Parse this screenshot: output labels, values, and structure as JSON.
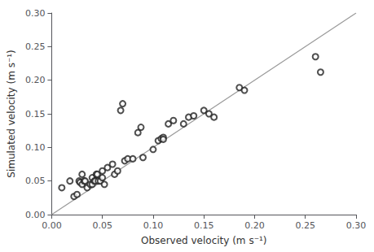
{
  "chart_data": {
    "type": "scatter",
    "xlabel": "Observed velocity (m s⁻¹)",
    "ylabel": "Simulated velocity (m s⁻¹)",
    "series": [
      {
        "type": "scatter",
        "color": "#222222",
        "x": [
          0.01,
          0.018,
          0.022,
          0.025,
          0.027,
          0.028,
          0.03,
          0.03,
          0.032,
          0.033,
          0.035,
          0.038,
          0.04,
          0.04,
          0.042,
          0.043,
          0.044,
          0.045,
          0.046,
          0.048,
          0.05,
          0.05,
          0.052,
          0.055,
          0.06,
          0.062,
          0.065,
          0.068,
          0.07,
          0.072,
          0.075,
          0.08,
          0.085,
          0.088,
          0.09,
          0.1,
          0.105,
          0.108,
          0.11,
          0.11,
          0.115,
          0.12,
          0.13,
          0.135,
          0.14,
          0.15,
          0.155,
          0.16,
          0.185,
          0.19,
          0.26,
          0.265
        ],
        "values": [
          0.04,
          0.05,
          0.027,
          0.03,
          0.05,
          0.048,
          0.045,
          0.06,
          0.05,
          0.05,
          0.04,
          0.045,
          0.055,
          0.045,
          0.05,
          0.05,
          0.06,
          0.06,
          0.05,
          0.05,
          0.055,
          0.065,
          0.045,
          0.07,
          0.075,
          0.06,
          0.065,
          0.155,
          0.165,
          0.08,
          0.083,
          0.083,
          0.122,
          0.13,
          0.085,
          0.097,
          0.11,
          0.113,
          0.115,
          0.112,
          0.135,
          0.14,
          0.135,
          0.145,
          0.147,
          0.155,
          0.15,
          0.145,
          0.189,
          0.185,
          0.235,
          0.212
        ]
      },
      {
        "type": "line",
        "color": "#999999",
        "x": [
          0.0,
          0.3
        ],
        "values": [
          0.0,
          0.3
        ]
      }
    ],
    "xlim": [
      0.0,
      0.3
    ],
    "ylim": [
      0.0,
      0.3
    ],
    "xticks": [
      {
        "value": 0.0,
        "label": "0.00"
      },
      0.05,
      {
        "value": 0.1,
        "label": "0.10"
      },
      0.15,
      {
        "value": 0.2,
        "label": "0.20"
      },
      0.25,
      {
        "value": 0.3,
        "label": "0.30"
      }
    ],
    "yticks": [
      {
        "value": 0.0,
        "label": "0.00"
      },
      0.05,
      {
        "value": 0.1,
        "label": "0.10"
      },
      0.15,
      {
        "value": 0.2,
        "label": "0.20"
      },
      0.25,
      {
        "value": 0.3,
        "label": "0.30"
      }
    ],
    "grid": false
  }
}
